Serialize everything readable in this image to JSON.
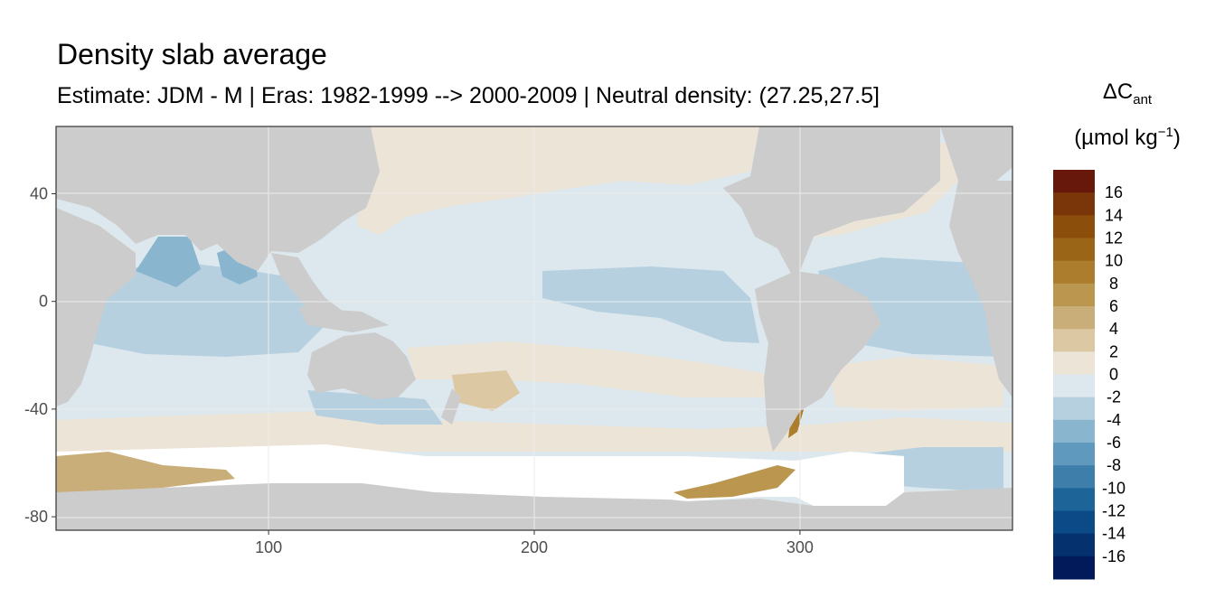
{
  "title": "Density slab average",
  "subtitle": "Estimate: JDM - M | Eras: 1982-1999 --> 2000-2009 | Neutral density: (27.25,27.5]",
  "legend": {
    "title_delta": "ΔC",
    "title_sub": "ant",
    "unit_prefix": "(µmol kg",
    "unit_sup": "−1",
    "unit_suffix": ")",
    "labels": [
      "16",
      "14",
      "12",
      "10",
      "8",
      "6",
      "4",
      "2",
      "0",
      "-2",
      "-4",
      "-6",
      "-8",
      "-10",
      "-12",
      "-14",
      "-16"
    ],
    "colors": [
      "#67180a",
      "#7a3508",
      "#8c4f0b",
      "#9a6516",
      "#ab7d2c",
      "#ba964f",
      "#c9ae7a",
      "#dcc8a2",
      "#ece4d7",
      "#dde8ee",
      "#b6d0e0",
      "#8ab5cf",
      "#5f99bd",
      "#3e7eab",
      "#1d6598",
      "#0b4a87",
      "#05316f",
      "#021a5a"
    ]
  },
  "chart_data": {
    "type": "heatmap",
    "title": "Density slab average",
    "subtitle": "Estimate: JDM - M | Eras: 1982-1999 --> 2000-2009 | Neutral density: (27.25,27.5]",
    "xlim": [
      20,
      380
    ],
    "ylim": [
      -85,
      65
    ],
    "x_ticks": [
      100,
      200,
      300
    ],
    "y_ticks": [
      40,
      0,
      -40,
      -80
    ],
    "grid": true,
    "colors": {
      "land": "#cccccc",
      "no_data": "#ffffff",
      "panel_border": "#333333",
      "grid": "#ebebeb"
    },
    "legend_placement": "right",
    "value_range": [
      -16,
      16
    ]
  }
}
